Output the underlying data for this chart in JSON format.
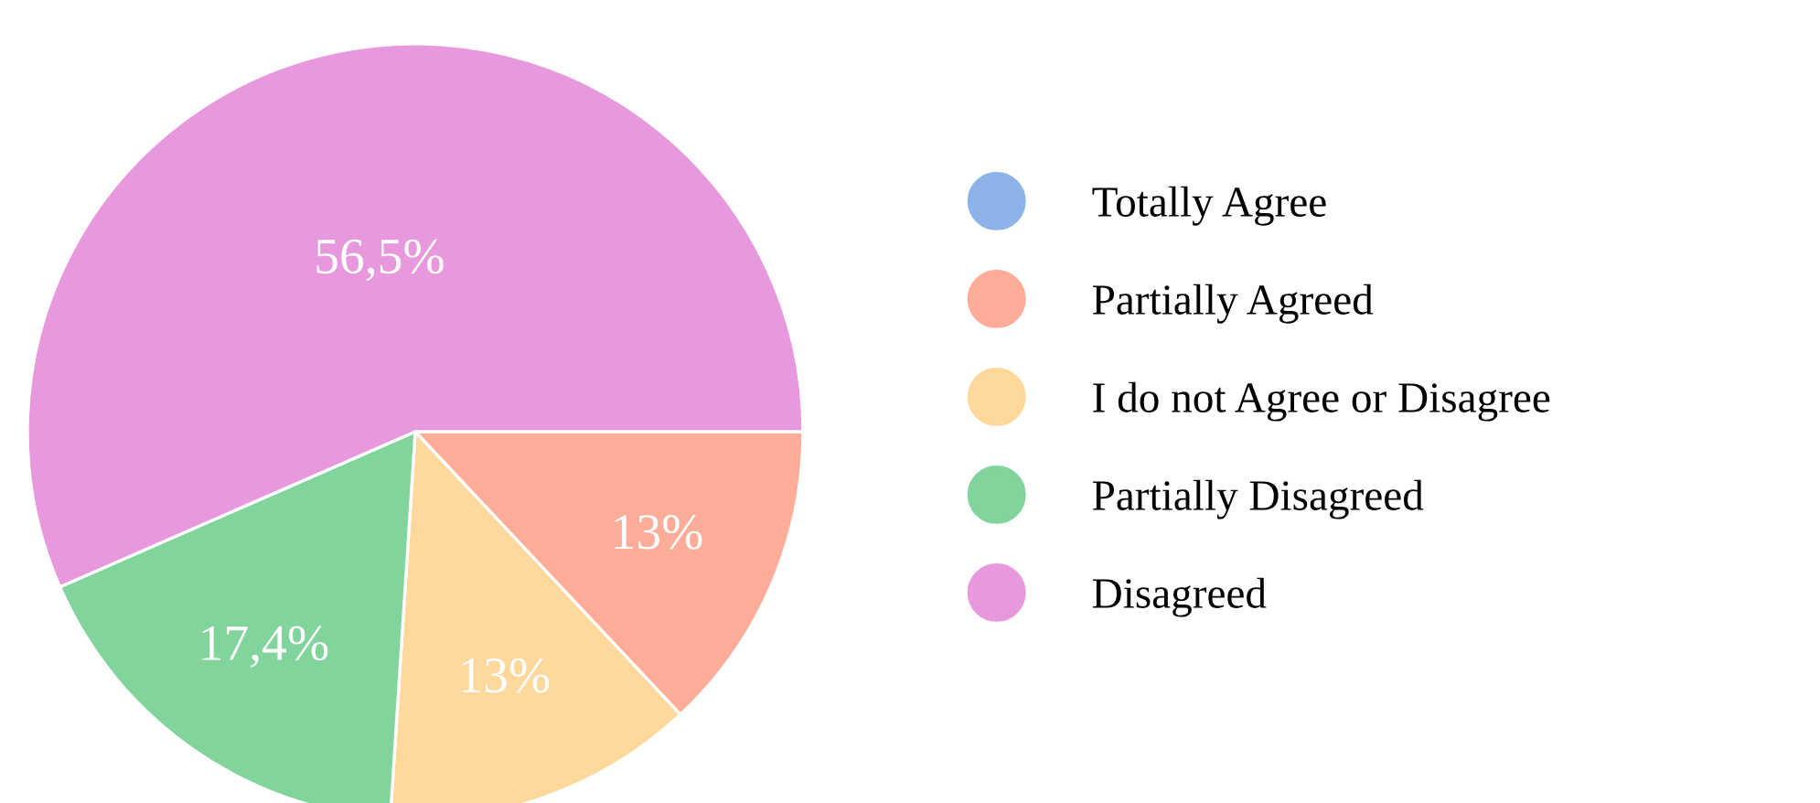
{
  "chart_data": {
    "type": "pie",
    "categories": [
      "Totally Agree",
      "Partially Agreed",
      "I do not Agree or Disagree",
      "Partially Disagreed",
      "Disagreed"
    ],
    "values": [
      0,
      13,
      13,
      17.4,
      56.5
    ],
    "value_labels": [
      null,
      "13%",
      "13%",
      "17,4%",
      "56,5%"
    ],
    "colors": [
      "#8db4e8",
      "#ffac98",
      "#ffd89c",
      "#80d49c",
      "#e898dc"
    ],
    "legend": "right"
  }
}
